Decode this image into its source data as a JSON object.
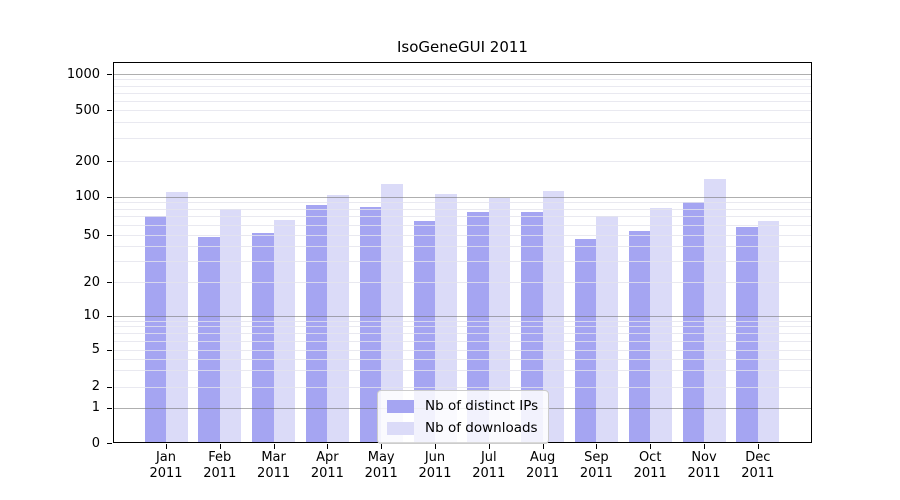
{
  "title": "IsoGeneGUI 2011",
  "chart_data": {
    "type": "bar",
    "title": "IsoGeneGUI 2011",
    "yscale": "log above 1, linear 0-1 (symlog-like)",
    "grid": true,
    "legend_position": "lower center",
    "categories": [
      "Jan 2011",
      "Feb 2011",
      "Mar 2011",
      "Apr 2011",
      "May 2011",
      "Jun 2011",
      "Jul 2011",
      "Aug 2011",
      "Sep 2011",
      "Oct 2011",
      "Nov 2011",
      "Dec 2011"
    ],
    "y_ticks": [
      0,
      1,
      2,
      5,
      10,
      20,
      50,
      100,
      200,
      500,
      1000
    ],
    "ylim": [
      0,
      1250
    ],
    "xlabel": "",
    "ylabel": "",
    "series": [
      {
        "name": "Nb of distinct IPs",
        "color": "#a5a5f2",
        "values": [
          70,
          48,
          52,
          86,
          83,
          64,
          76,
          76,
          46,
          54,
          91,
          58
        ]
      },
      {
        "name": "Nb of downloads",
        "color": "#dbdbf8",
        "values": [
          110,
          80,
          65,
          103,
          127,
          104,
          97,
          112,
          70,
          82,
          140,
          64
        ]
      }
    ]
  },
  "colors": {
    "background": "#ffffff",
    "axis": "#000000",
    "grid_major": "rgba(110,110,110,0.55)",
    "grid_minor": "rgba(228,228,236,0.8)"
  }
}
